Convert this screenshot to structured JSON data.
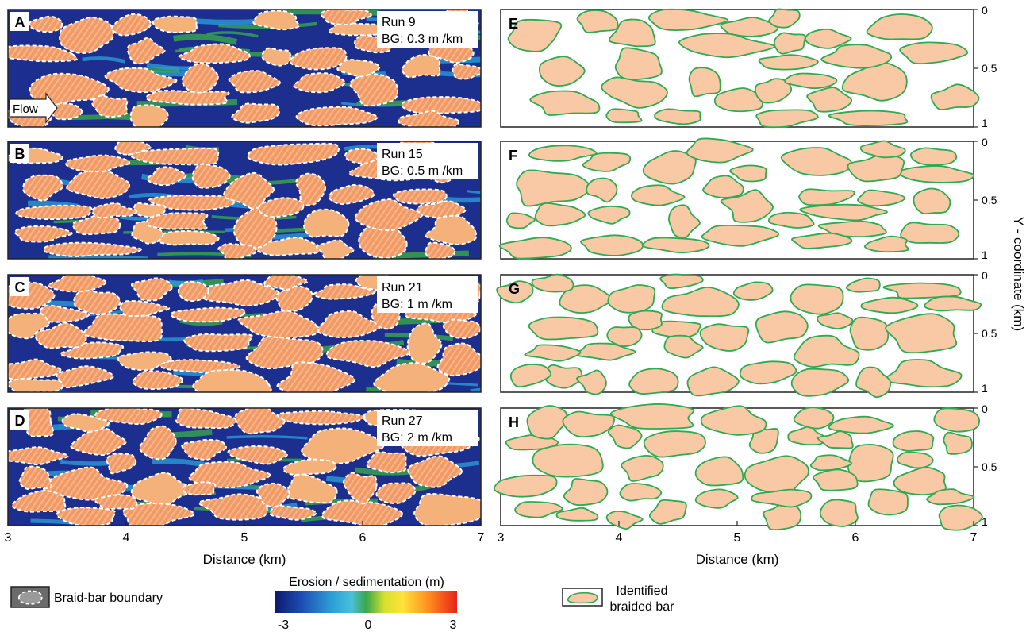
{
  "figure": {
    "left_panels": [
      {
        "letter": "A",
        "run": "Run 9",
        "bg": "BG: 0.3 m /km",
        "flow_label": "Flow"
      },
      {
        "letter": "B",
        "run": "Run 15",
        "bg": "BG: 0.5 m /km"
      },
      {
        "letter": "C",
        "run": "Run 21",
        "bg": "BG: 1 m /km"
      },
      {
        "letter": "D",
        "run": "Run 27",
        "bg": "BG: 2 m /km"
      }
    ],
    "right_panels": [
      {
        "letter": "E"
      },
      {
        "letter": "F"
      },
      {
        "letter": "G"
      },
      {
        "letter": "H"
      }
    ],
    "x_ticks": [
      "3",
      "4",
      "5",
      "6",
      "7"
    ],
    "x_axis_label": "Distance (km)",
    "y_ticks": [
      "0",
      "0.5",
      "1"
    ],
    "y_axis_label": "Y - coordinate (km)",
    "legend": {
      "boundary_label": "Braid-bar boundary",
      "colorbar_title": "Erosion / sedimentation (m)",
      "colorbar_ticks": [
        "-3",
        "0",
        "3"
      ],
      "bar_label_line1": "Identified",
      "bar_label_line2": "braided bar"
    },
    "colors": {
      "bar_fill": "#f8c9a4",
      "bar_stroke": "#2eaa52",
      "channel_dark": "#1c2f8f",
      "deposit": "#f29a66",
      "frame": "#222222",
      "colorbar": [
        "#0b1a6e",
        "#1f4fb5",
        "#2a9ad6",
        "#48c1d9",
        "#3aa74a",
        "#d6e030",
        "#ffe23a",
        "#ff8a1e",
        "#e8211a"
      ]
    }
  }
}
